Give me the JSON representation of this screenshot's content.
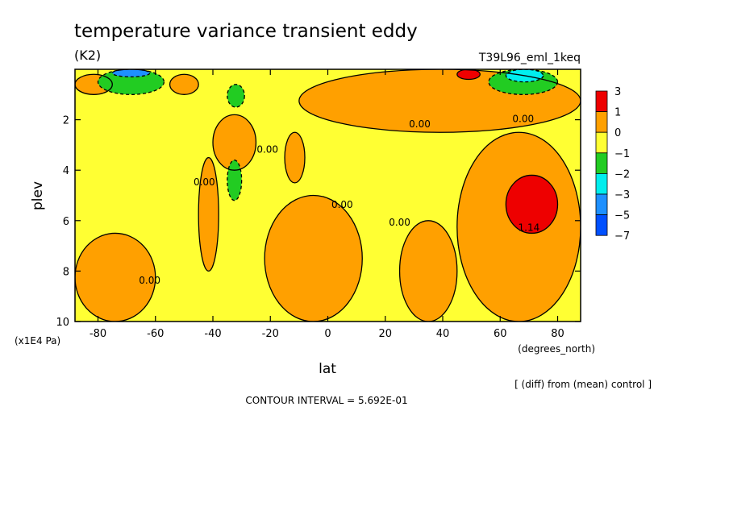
{
  "chart_data": {
    "type": "heatmap",
    "title": "temperature variance transient eddy",
    "units": "(K2)",
    "run_label": "T39L96_eml_1keq",
    "xlabel": "lat",
    "xunits": "(degrees_north)",
    "ylabel": "plev",
    "yunits": "(x1E4 Pa)",
    "note": "[ (diff) from (mean) control ]",
    "contour_interval": "CONTOUR INTERVAL = 5.692E-01",
    "xlim": [
      -88,
      88
    ],
    "ylim": [
      10,
      0
    ],
    "x_ticks": [
      {
        "value": -80,
        "label": "-80"
      },
      {
        "value": -60,
        "label": "-60"
      },
      {
        "value": -40,
        "label": "-40"
      },
      {
        "value": -20,
        "label": "-20"
      },
      {
        "value": 0,
        "label": "0"
      },
      {
        "value": 20,
        "label": "20"
      },
      {
        "value": 40,
        "label": "40"
      },
      {
        "value": 60,
        "label": "60"
      },
      {
        "value": 80,
        "label": "80"
      }
    ],
    "y_ticks": [
      {
        "value": 2,
        "label": "2"
      },
      {
        "value": 4,
        "label": "4"
      },
      {
        "value": 6,
        "label": "6"
      },
      {
        "value": 8,
        "label": "8"
      },
      {
        "value": 10,
        "label": "10"
      }
    ],
    "colorbar": {
      "labels": [
        "3",
        "1",
        "0",
        "−1",
        "−2",
        "−3",
        "−5",
        "−7"
      ],
      "colors": [
        "#ee0000",
        "#ffa000",
        "#ffff33",
        "#22cc22",
        "#00eeee",
        "#1e90ff",
        "#0050ff"
      ]
    },
    "colors": {
      "positive_0_1": "#ffa000",
      "negative_0_1": "#ffff33",
      "positive_gt_1": "#ee0000",
      "negative_1_2": "#22cc22",
      "negative_2_3": "#00eeee",
      "negative_3_5": "#1e90ff"
    },
    "contour_labels": [
      {
        "text": "0.00",
        "lat": 32,
        "plev": 2.3
      },
      {
        "text": "0.00",
        "lat": 68,
        "plev": 2.1
      },
      {
        "text": "0.00",
        "lat": -21,
        "plev": 3.3
      },
      {
        "text": "0.00",
        "lat": -43,
        "plev": 4.6
      },
      {
        "text": "0.00",
        "lat": 5,
        "plev": 5.5
      },
      {
        "text": "0.00",
        "lat": 25,
        "plev": 6.2
      },
      {
        "text": "0.00",
        "lat": -62,
        "plev": 8.5
      },
      {
        "text": "1.14",
        "lat": 70,
        "plev": 6.4
      }
    ],
    "regions": [
      {
        "sign": "positive",
        "lat": [
          -88,
          -75
        ],
        "plev": [
          0.2,
          1.0
        ]
      },
      {
        "sign": "positive",
        "lat": [
          -55,
          -45
        ],
        "plev": [
          0.2,
          1.0
        ]
      },
      {
        "sign": "positive",
        "lat": [
          -45,
          -38
        ],
        "plev": [
          3.5,
          8.0
        ]
      },
      {
        "sign": "positive",
        "lat": [
          -40,
          -25
        ],
        "plev": [
          1.8,
          4.0
        ]
      },
      {
        "sign": "positive",
        "lat": [
          -15,
          -8
        ],
        "plev": [
          2.5,
          4.5
        ]
      },
      {
        "sign": "positive",
        "lat": [
          -22,
          12
        ],
        "plev": [
          5.0,
          10.0
        ]
      },
      {
        "sign": "positive",
        "lat": [
          -88,
          -60
        ],
        "plev": [
          6.5,
          10.0
        ]
      },
      {
        "sign": "positive",
        "lat": [
          -10,
          88
        ],
        "plev": [
          0.0,
          2.5
        ]
      },
      {
        "sign": "positive",
        "lat": [
          45,
          88
        ],
        "plev": [
          2.5,
          10.0
        ]
      },
      {
        "sign": "positive",
        "lat": [
          25,
          45
        ],
        "plev": [
          6.0,
          10.0
        ]
      },
      {
        "sign": "negative_1_2",
        "lat": [
          -35,
          -29
        ],
        "plev": [
          0.6,
          1.5
        ]
      },
      {
        "sign": "negative_1_2",
        "lat": [
          -35,
          -30
        ],
        "plev": [
          3.6,
          5.2
        ]
      },
      {
        "sign": "negative_1_2",
        "lat": [
          -80,
          -57
        ],
        "plev": [
          0.0,
          1.0
        ]
      },
      {
        "sign": "negative_1_2",
        "lat": [
          56,
          80
        ],
        "plev": [
          0.0,
          1.0
        ]
      },
      {
        "sign": "negative_2_3",
        "lat": [
          62,
          75
        ],
        "plev": [
          0.0,
          0.5
        ]
      },
      {
        "sign": "negative_3_5",
        "lat": [
          -75,
          -62
        ],
        "plev": [
          0.0,
          0.3
        ]
      },
      {
        "sign": "positive_gt_1",
        "lat": [
          62,
          80
        ],
        "plev": [
          4.2,
          6.5
        ]
      },
      {
        "sign": "positive_gt_1",
        "lat": [
          45,
          53
        ],
        "plev": [
          0.0,
          0.4
        ]
      }
    ]
  }
}
